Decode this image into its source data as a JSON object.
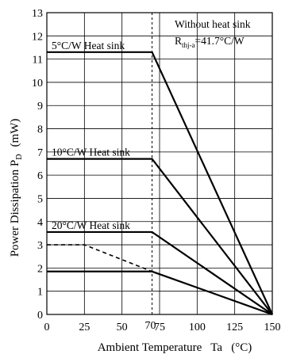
{
  "chart_data": {
    "type": "line",
    "title": "",
    "xlabel": "Ambient Temperature   Ta   (°C)",
    "ylabel": "Power Dissipation P",
    "ylabel_sub": "D",
    "ylabel_unit": "(mW)",
    "xlim": [
      0,
      150
    ],
    "ylim": [
      0,
      13
    ],
    "grid": true,
    "x_ticks": [
      0,
      25,
      50,
      75,
      100,
      125,
      150
    ],
    "y_ticks": [
      0,
      1,
      2,
      3,
      4,
      5,
      6,
      7,
      8,
      9,
      10,
      11,
      12,
      13
    ],
    "marker_line": {
      "x": 70,
      "label": "70"
    },
    "series": [
      {
        "name": "5°C/W Heat sink",
        "style": "solid",
        "x": [
          0,
          70,
          150
        ],
        "y": [
          11.3,
          11.3,
          0
        ]
      },
      {
        "name": "10°C/W Heat sink",
        "style": "solid",
        "x": [
          0,
          70,
          150
        ],
        "y": [
          6.7,
          6.7,
          0
        ]
      },
      {
        "name": "20°C/W Heat sink",
        "style": "solid",
        "x": [
          0,
          70,
          150
        ],
        "y": [
          3.55,
          3.55,
          0
        ]
      },
      {
        "name": "",
        "style": "solid",
        "x": [
          0,
          70,
          150
        ],
        "y": [
          1.85,
          1.85,
          0
        ]
      },
      {
        "name": "",
        "style": "dashed",
        "x": [
          0,
          25,
          70
        ],
        "y": [
          3.0,
          3.0,
          1.85
        ]
      }
    ],
    "annotations": {
      "without_heat_sink": "Without heat sink",
      "rth_main": "R",
      "rth_sub": "thj-a",
      "rth_value": "=41.7°C/W"
    }
  }
}
